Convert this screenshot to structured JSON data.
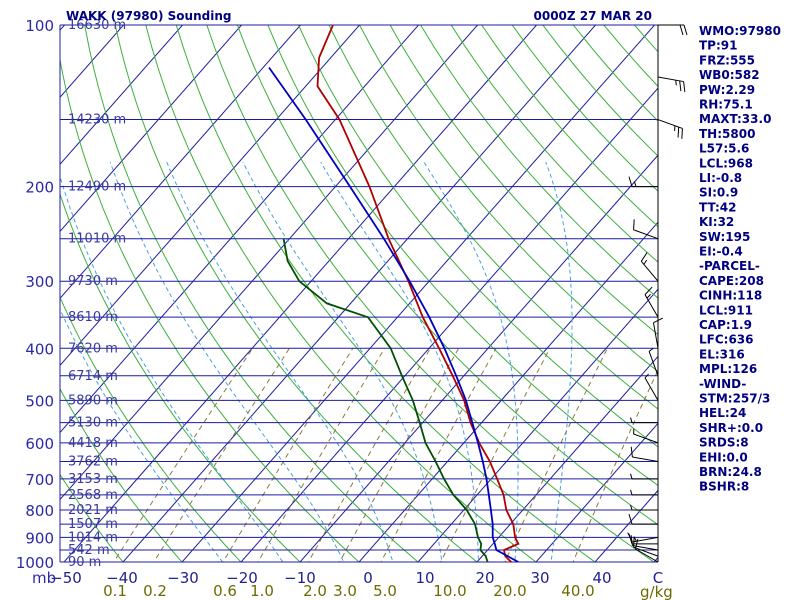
{
  "header": {
    "station": "WAKK (97980) Sounding",
    "time": "0000Z 27 MAR 20"
  },
  "colors": {
    "isobar": "#1c1ca0",
    "isotherm": "#1c1ca0",
    "dry_adiabat": "#3cb03c",
    "moist_adiabat": "#4aa0e0",
    "mixing_ratio": "#8c7a3a",
    "temperature": "#b00000",
    "dewpoint": "#005000",
    "parcel": "#0000c0",
    "wind": "#000000",
    "text": "#000080"
  },
  "axis_labels": {
    "pressure_unit": "mb",
    "mixing_unit": "g/kg"
  },
  "chart_data": {
    "type": "line",
    "title": "WAKK (97980) Sounding",
    "subtitle": "0000Z 27 MAR 20",
    "x_axis": {
      "label": "",
      "ticks": [
        "−50",
        "−40",
        "−30",
        "−20",
        "−10",
        "0",
        "10",
        "20",
        "30",
        "40",
        "C"
      ],
      "range": [
        -50,
        50
      ]
    },
    "y_axis": {
      "label": "mb",
      "scale": "log",
      "ticks": [
        100,
        200,
        300,
        400,
        500,
        600,
        700,
        800,
        900,
        1000
      ],
      "range": [
        1000,
        100
      ]
    },
    "height_labels": [
      {
        "p": 100,
        "label": "16630 m"
      },
      {
        "p": 150,
        "label": "14230 m"
      },
      {
        "p": 200,
        "label": "12490 m"
      },
      {
        "p": 250,
        "label": "11010 m"
      },
      {
        "p": 300,
        "label": "9730 m"
      },
      {
        "p": 350,
        "label": "8610 m"
      },
      {
        "p": 400,
        "label": "7620 m"
      },
      {
        "p": 450,
        "label": "6714 m"
      },
      {
        "p": 500,
        "label": "5890 m"
      },
      {
        "p": 550,
        "label": "5130 m"
      },
      {
        "p": 600,
        "label": "4418 m"
      },
      {
        "p": 650,
        "label": "3762 m"
      },
      {
        "p": 700,
        "label": "3153 m"
      },
      {
        "p": 750,
        "label": "2568 m"
      },
      {
        "p": 800,
        "label": "2021 m"
      },
      {
        "p": 850,
        "label": "1507 m"
      },
      {
        "p": 900,
        "label": "1014 m"
      },
      {
        "p": 950,
        "label": "542 m"
      },
      {
        "p": 1000,
        "label": "90 m"
      }
    ],
    "mixing_ratio_ticks": [
      "0.1",
      "0.2",
      "0.6",
      "1.0",
      "2.0",
      "3.0",
      "5.0",
      "10.0",
      "20.0",
      "40.0"
    ],
    "series": [
      {
        "name": "",
        "role": "temperature",
        "points": [
          {
            "p": 1006,
            "t": 24.5
          },
          {
            "p": 1000,
            "t": 25.8
          },
          {
            "p": 975,
            "t": 23.9
          },
          {
            "p": 950,
            "t": 22.8
          },
          {
            "p": 925,
            "t": 24.3
          },
          {
            "p": 900,
            "t": 22.8
          },
          {
            "p": 850,
            "t": 20.5
          },
          {
            "p": 800,
            "t": 17.2
          },
          {
            "p": 750,
            "t": 14.5
          },
          {
            "p": 700,
            "t": 11.0
          },
          {
            "p": 650,
            "t": 7.2
          },
          {
            "p": 600,
            "t": 2.6
          },
          {
            "p": 550,
            "t": -1.9
          },
          {
            "p": 500,
            "t": -6.3
          },
          {
            "p": 450,
            "t": -11.9
          },
          {
            "p": 400,
            "t": -18.3
          },
          {
            "p": 350,
            "t": -25.7
          },
          {
            "p": 300,
            "t": -33.5
          },
          {
            "p": 250,
            "t": -43.2
          },
          {
            "p": 200,
            "t": -54.2
          },
          {
            "p": 150,
            "t": -69.3
          },
          {
            "p": 130,
            "t": -78.0
          },
          {
            "p": 115,
            "t": -82.0
          },
          {
            "p": 100,
            "t": -84.5
          }
        ]
      },
      {
        "name": "",
        "role": "dewpoint",
        "points": [
          {
            "p": 1006,
            "t": 22.0
          },
          {
            "p": 1000,
            "t": 21.8
          },
          {
            "p": 975,
            "t": 20.6
          },
          {
            "p": 950,
            "t": 18.8
          },
          {
            "p": 925,
            "t": 18.0
          },
          {
            "p": 900,
            "t": 16.5
          },
          {
            "p": 850,
            "t": 14.0
          },
          {
            "p": 800,
            "t": 10.5
          },
          {
            "p": 750,
            "t": 6.0
          },
          {
            "p": 700,
            "t": 2.0
          },
          {
            "p": 650,
            "t": -2.0
          },
          {
            "p": 600,
            "t": -6.5
          },
          {
            "p": 550,
            "t": -10.5
          },
          {
            "p": 500,
            "t": -15.0
          },
          {
            "p": 450,
            "t": -20.5
          },
          {
            "p": 400,
            "t": -26.5
          },
          {
            "p": 350,
            "t": -35.0
          },
          {
            "p": 330,
            "t": -44.0
          },
          {
            "p": 300,
            "t": -52.0
          },
          {
            "p": 275,
            "t": -57.0
          },
          {
            "p": 250,
            "t": -61.0
          }
        ]
      },
      {
        "name": "",
        "role": "parcel",
        "points": [
          {
            "p": 1000,
            "t": 27.0
          },
          {
            "p": 950,
            "t": 21.5
          },
          {
            "p": 925,
            "t": 20.3
          },
          {
            "p": 900,
            "t": 19.0
          },
          {
            "p": 850,
            "t": 17.0
          },
          {
            "p": 800,
            "t": 14.6
          },
          {
            "p": 750,
            "t": 12.0
          },
          {
            "p": 700,
            "t": 9.2
          },
          {
            "p": 650,
            "t": 6.0
          },
          {
            "p": 600,
            "t": 2.4
          },
          {
            "p": 550,
            "t": -1.6
          },
          {
            "p": 500,
            "t": -6.0
          },
          {
            "p": 450,
            "t": -11.3
          },
          {
            "p": 400,
            "t": -17.4
          },
          {
            "p": 350,
            "t": -24.6
          },
          {
            "p": 300,
            "t": -33.3
          },
          {
            "p": 250,
            "t": -44.0
          },
          {
            "p": 200,
            "t": -57.5
          },
          {
            "p": 150,
            "t": -75.0
          },
          {
            "p": 120,
            "t": -89.0
          }
        ]
      }
    ],
    "wind_barbs": [
      {
        "p": 1000,
        "dir": 300,
        "kt": 10
      },
      {
        "p": 975,
        "dir": 290,
        "kt": 10
      },
      {
        "p": 950,
        "dir": 280,
        "kt": 10
      },
      {
        "p": 925,
        "dir": 270,
        "kt": 10
      },
      {
        "p": 900,
        "dir": 260,
        "kt": 15
      },
      {
        "p": 850,
        "dir": 270,
        "kt": 10
      },
      {
        "p": 800,
        "dir": 270,
        "kt": 5
      },
      {
        "p": 750,
        "dir": 270,
        "kt": 5
      },
      {
        "p": 700,
        "dir": 270,
        "kt": 5
      },
      {
        "p": 650,
        "dir": 280,
        "kt": 10
      },
      {
        "p": 600,
        "dir": 290,
        "kt": 5
      },
      {
        "p": 550,
        "dir": 270,
        "kt": 5
      },
      {
        "p": 500,
        "dir": 330,
        "kt": 5
      },
      {
        "p": 450,
        "dir": 340,
        "kt": 5
      },
      {
        "p": 400,
        "dir": 350,
        "kt": 10
      },
      {
        "p": 350,
        "dir": 330,
        "kt": 15
      },
      {
        "p": 300,
        "dir": 320,
        "kt": 15
      },
      {
        "p": 250,
        "dir": 290,
        "kt": 10
      },
      {
        "p": 200,
        "dir": 270,
        "kt": 15
      },
      {
        "p": 150,
        "dir": 110,
        "kt": 25
      },
      {
        "p": 125,
        "dir": 100,
        "kt": 25
      },
      {
        "p": 100,
        "dir": 90,
        "kt": 20
      }
    ],
    "indices": [
      "WMO:97980",
      "TP:91",
      "FRZ:555",
      "WB0:582",
      "PW:2.29",
      "RH:75.1",
      "MAXT:33.0",
      "TH:5800",
      "L57:5.6",
      "LCL:968",
      "LI:-0.8",
      "SI:0.9",
      "TT:42",
      "KI:32",
      "SW:195",
      "EI:-0.4",
      "-PARCEL-",
      "CAPE:208",
      "CINH:118",
      "LCL:911",
      "CAP:1.9",
      "LFC:636",
      "EL:316",
      "MPL:126",
      "-WIND-",
      "STM:257/3",
      "HEL:24",
      "SHR+:0.0",
      "SRDS:8",
      "EHI:0.0",
      "BRN:24.8",
      "BSHR:8"
    ]
  }
}
